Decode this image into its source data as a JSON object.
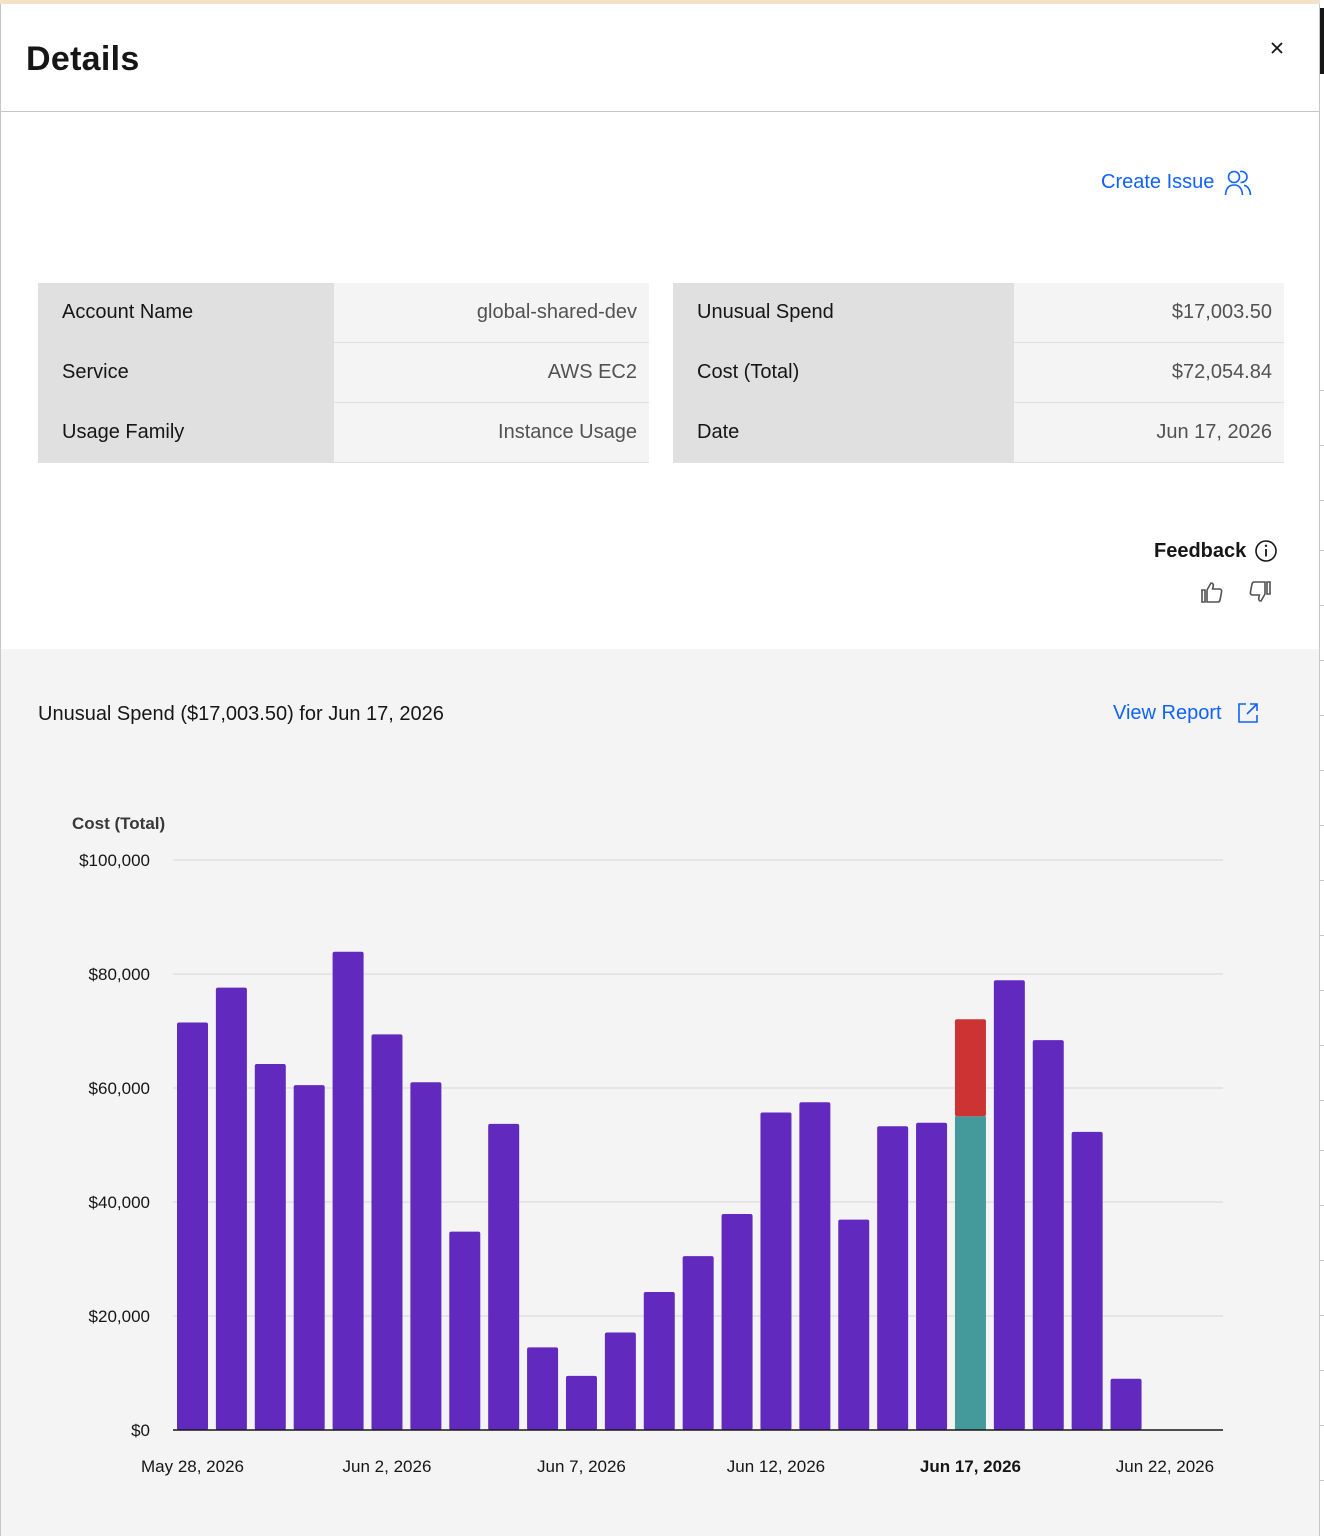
{
  "header": {
    "title": "Details",
    "close_icon": "close-icon"
  },
  "actions": {
    "create_issue_label": "Create Issue",
    "create_issue_icon": "user-group-icon"
  },
  "details_left": [
    {
      "label": "Account Name",
      "value": "global-shared-dev"
    },
    {
      "label": "Service",
      "value": "AWS EC2"
    },
    {
      "label": "Usage Family",
      "value": "Instance Usage"
    }
  ],
  "details_right": [
    {
      "label": "Unusual Spend",
      "value": "$17,003.50"
    },
    {
      "label": "Cost (Total)",
      "value": "$72,054.84"
    },
    {
      "label": "Date",
      "value": "Jun 17, 2026"
    }
  ],
  "feedback": {
    "label": "Feedback",
    "info_icon": "info-icon",
    "up_icon": "thumbs-up-icon",
    "down_icon": "thumbs-down-icon"
  },
  "chart_section": {
    "title": "Unusual Spend ($17,003.50) for Jun 17, 2026",
    "view_report_label": "View Report",
    "view_report_icon": "launch-icon"
  },
  "colors": {
    "bar": "#6229bf",
    "expected": "#44999a",
    "unusual": "#cc3333",
    "link": "#0f62fe"
  },
  "chart_data": {
    "type": "bar",
    "ylabel": "Cost (Total)",
    "ylim": [
      0,
      100000
    ],
    "yticks": [
      0,
      20000,
      40000,
      60000,
      80000,
      100000
    ],
    "ytick_labels": [
      "$0",
      "$20,000",
      "$40,000",
      "$60,000",
      "$80,000",
      "$100,000"
    ],
    "grid": true,
    "highlight_category": "Jun 17, 2026",
    "xtick_labels": [
      "May 28, 2026",
      "Jun 2, 2026",
      "Jun 7, 2026",
      "Jun 12, 2026",
      "Jun 17, 2026",
      "Jun 22, 2026"
    ],
    "xtick_values": [
      "May 28, 2026",
      "Jun 2, 2026",
      "Jun 7, 2026",
      "Jun 12, 2026",
      "Jun 17, 2026",
      "Jun 22, 2026"
    ],
    "categories": [
      "May 28, 2026",
      "May 29, 2026",
      "May 30, 2026",
      "May 31, 2026",
      "Jun 1, 2026",
      "Jun 2, 2026",
      "Jun 3, 2026",
      "Jun 4, 2026",
      "Jun 5, 2026",
      "Jun 6, 2026",
      "Jun 7, 2026",
      "Jun 8, 2026",
      "Jun 9, 2026",
      "Jun 10, 2026",
      "Jun 11, 2026",
      "Jun 12, 2026",
      "Jun 13, 2026",
      "Jun 14, 2026",
      "Jun 15, 2026",
      "Jun 16, 2026",
      "Jun 17, 2026",
      "Jun 18, 2026",
      "Jun 19, 2026",
      "Jun 20, 2026",
      "Jun 21, 2026",
      "Jun 22, 2026"
    ],
    "values": [
      71500,
      77600,
      64200,
      60500,
      83900,
      69400,
      61000,
      34800,
      53700,
      14500,
      9500,
      17100,
      24200,
      30500,
      37900,
      55700,
      57500,
      36900,
      53300,
      53900,
      72054.84,
      78900,
      68400,
      52300,
      9000,
      null
    ],
    "stacked_highlight": {
      "expected": 55051.34,
      "unusual": 17003.5
    }
  }
}
